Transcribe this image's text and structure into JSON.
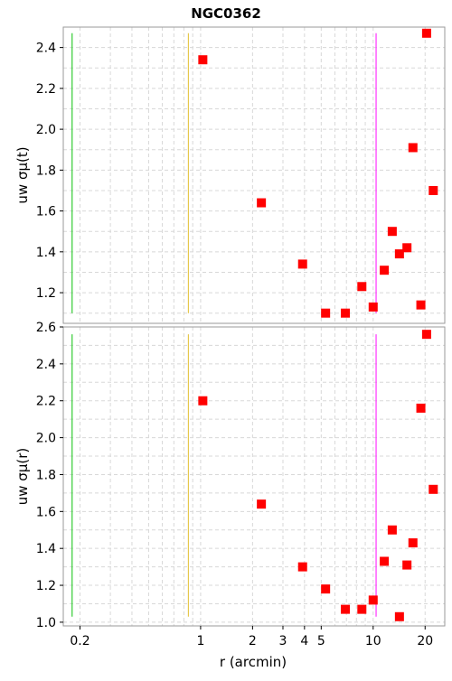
{
  "chart_data": {
    "title": "NGC0362",
    "xlabel": "r (arcmin)",
    "x_scale": "log",
    "xlim": [
      0.16,
      26
    ],
    "x_ticks": [
      0.2,
      1,
      2,
      3,
      4,
      5,
      10,
      20
    ],
    "marker": {
      "shape": "square",
      "color": "#ff0000"
    },
    "vertical_lines": [
      {
        "x": 0.18,
        "color": "#33cc33"
      },
      {
        "x": 0.85,
        "color": "#e6c84d"
      },
      {
        "x": 10.4,
        "color": "#ff33ff"
      }
    ],
    "panels": [
      {
        "type": "scatter",
        "ylabel": "uw σμ(t)",
        "ylim": [
          1.05,
          2.5
        ],
        "y_ticks": [
          1.2,
          1.4,
          1.6,
          1.8,
          2.0,
          2.2,
          2.4
        ],
        "line_ymax": 2.47,
        "line_ymin": 1.1,
        "points": [
          {
            "x": 1.03,
            "y": 2.34
          },
          {
            "x": 2.25,
            "y": 1.64
          },
          {
            "x": 3.9,
            "y": 1.34
          },
          {
            "x": 5.3,
            "y": 1.1
          },
          {
            "x": 6.9,
            "y": 1.1
          },
          {
            "x": 8.6,
            "y": 1.23
          },
          {
            "x": 10.0,
            "y": 1.13
          },
          {
            "x": 11.6,
            "y": 1.31
          },
          {
            "x": 12.9,
            "y": 1.5
          },
          {
            "x": 14.2,
            "y": 1.39
          },
          {
            "x": 15.7,
            "y": 1.42
          },
          {
            "x": 17.0,
            "y": 1.91
          },
          {
            "x": 18.9,
            "y": 1.14
          },
          {
            "x": 20.4,
            "y": 2.47
          },
          {
            "x": 22.3,
            "y": 1.7
          }
        ]
      },
      {
        "type": "scatter",
        "ylabel": "uw σμ(r)",
        "ylim": [
          0.98,
          2.6
        ],
        "y_ticks": [
          1.0,
          1.2,
          1.4,
          1.6,
          1.8,
          2.0,
          2.2,
          2.4,
          2.6
        ],
        "line_ymax": 2.56,
        "line_ymin": 1.03,
        "points": [
          {
            "x": 1.03,
            "y": 2.2
          },
          {
            "x": 2.25,
            "y": 1.64
          },
          {
            "x": 3.9,
            "y": 1.3
          },
          {
            "x": 5.3,
            "y": 1.18
          },
          {
            "x": 6.9,
            "y": 1.07
          },
          {
            "x": 8.6,
            "y": 1.07
          },
          {
            "x": 10.0,
            "y": 1.12
          },
          {
            "x": 11.6,
            "y": 1.33
          },
          {
            "x": 12.9,
            "y": 1.5
          },
          {
            "x": 14.2,
            "y": 1.03
          },
          {
            "x": 15.7,
            "y": 1.31
          },
          {
            "x": 17.0,
            "y": 1.43
          },
          {
            "x": 18.9,
            "y": 2.16
          },
          {
            "x": 20.4,
            "y": 2.56
          },
          {
            "x": 22.3,
            "y": 1.72
          }
        ]
      }
    ]
  }
}
